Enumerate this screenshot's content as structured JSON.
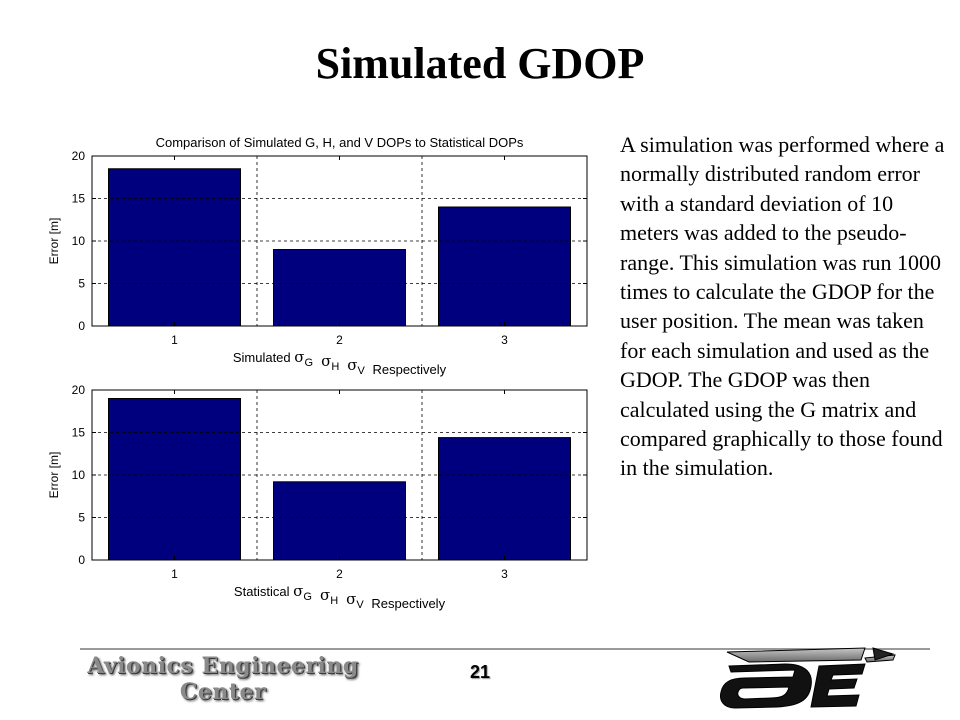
{
  "slide": {
    "title": "Simulated GDOP",
    "description": "A simulation was performed where a normally distributed random error with a standard deviation of 10 meters was added to the pseudo-range. This simulation was run 1000 times to calculate the GDOP for the user position. The mean was taken for each simulation and used as the GDOP. The GDOP was then calculated using the G matrix and compared graphically to those found in the simulation.",
    "page_number": "21",
    "footer_logo_text": [
      "Avionics Engineering",
      "Center"
    ],
    "colors": {
      "bar": "#00007e",
      "grid": "#000000"
    }
  },
  "chart_data": [
    {
      "type": "bar",
      "title": "Comparison of Simulated G, H, and V DOPs to Statistical DOPs",
      "categories": [
        "1",
        "2",
        "3"
      ],
      "values": [
        18.5,
        9.0,
        14.0
      ],
      "ylabel": "Error [m]",
      "xlabel_prefix": "Simulated",
      "xlabel_suffix": "Respectively",
      "xlabel_sigmas": [
        "G",
        "H",
        "V"
      ],
      "ylim": [
        0,
        20
      ],
      "yticks": [
        0,
        5,
        10,
        15,
        20
      ],
      "grid": true
    },
    {
      "type": "bar",
      "title": "",
      "categories": [
        "1",
        "2",
        "3"
      ],
      "values": [
        19.0,
        9.2,
        14.4
      ],
      "ylabel": "Error [m]",
      "xlabel_prefix": "Statistical",
      "xlabel_suffix": "Respectively",
      "xlabel_sigmas": [
        "G",
        "H",
        "V"
      ],
      "ylim": [
        0,
        20
      ],
      "yticks": [
        0,
        5,
        10,
        15,
        20
      ],
      "grid": true
    }
  ]
}
